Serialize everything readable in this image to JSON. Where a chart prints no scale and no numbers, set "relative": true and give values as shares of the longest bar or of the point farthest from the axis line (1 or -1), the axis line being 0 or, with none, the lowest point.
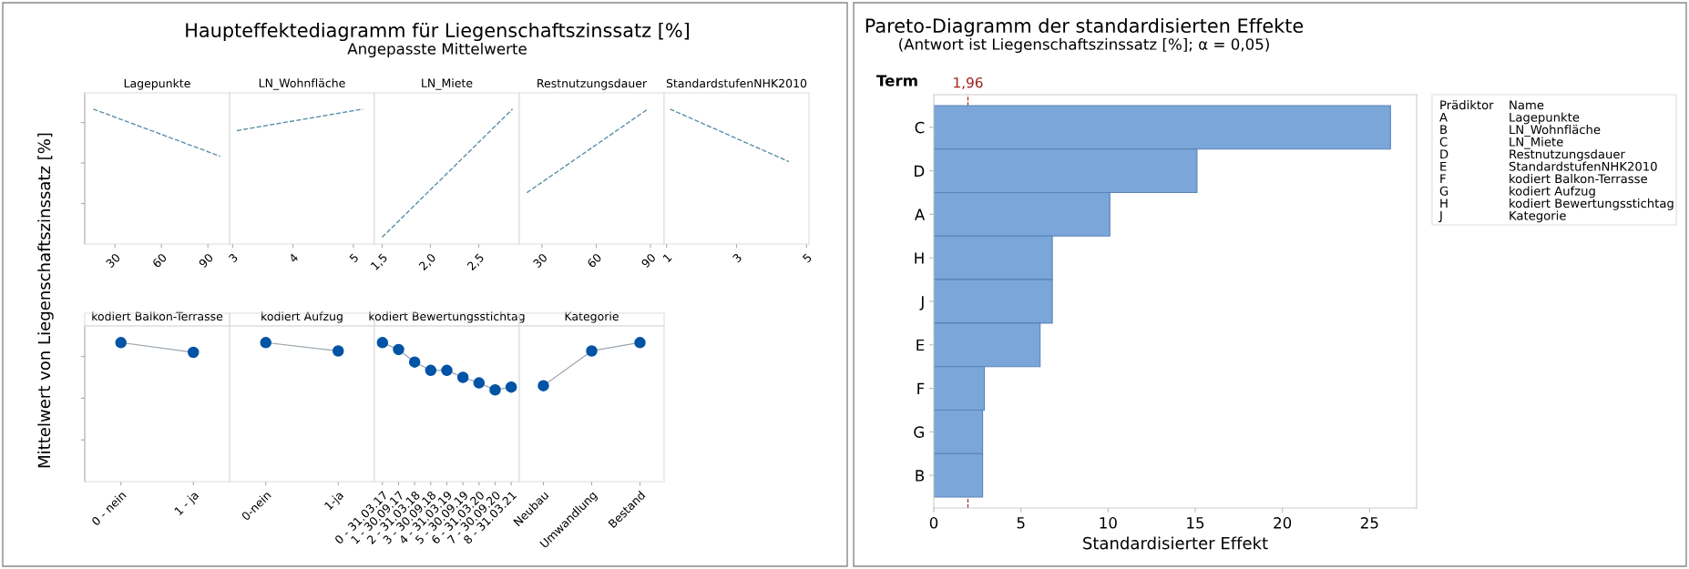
{
  "chart_data": [
    {
      "type": "line",
      "ylabel": "Mittelwert von Liegenschaftszinssatz [%]",
      "xlabel": "Lagepunkte",
      "relative": true,
      "x": [
        16,
        98
      ],
      "values": [
        1,
        0.65
      ],
      "color": "#5b8fa8",
      "line_style": "dashed",
      "marker": "none",
      "xlim": [
        10.5,
        104
      ],
      "xticks": [
        30,
        60,
        90
      ],
      "tick_labels": "x"
    },
    {
      "type": "line",
      "xlabel": "LN_Wohnfläche",
      "relative": true,
      "x": [
        3.07,
        5.16
      ],
      "values": [
        0.84,
        1
      ],
      "color": "#5b8fa8",
      "line_style": "dashed",
      "marker": "none",
      "xlim": [
        2.95,
        5.35
      ],
      "xticks": [
        3,
        4,
        5
      ],
      "tick_labels": "x"
    },
    {
      "type": "line",
      "title": "Haupteffektediagramm für Liegenschaftszinssatz [%]",
      "subtitle": "Angepasste Mittelwerte",
      "xlabel": "LN_Miete",
      "relative": true,
      "x": [
        1.5,
        2.85
      ],
      "values": [
        0.05,
        1
      ],
      "color": "#5b8fa8",
      "line_style": "dashed",
      "marker": "none",
      "xlim": [
        1.42,
        2.92
      ],
      "xticks": [
        {
          "value": 1.5,
          "label": "1,5"
        },
        {
          "value": 2.0,
          "label": "2,0"
        },
        {
          "value": 2.5,
          "label": "2,5"
        }
      ],
      "tick_labels": "x"
    },
    {
      "type": "line",
      "xlabel": "Restnutzungsdauer",
      "relative": true,
      "x": [
        21.6,
        88.6
      ],
      "values": [
        0.38,
        1
      ],
      "color": "#5b8fa8",
      "line_style": "dashed",
      "marker": "none",
      "xlim": [
        17.4,
        97.6
      ],
      "xticks": [
        30,
        60,
        90
      ],
      "tick_labels": "x"
    },
    {
      "type": "line",
      "xlabel": "StandardstufenNHK2010",
      "relative": true,
      "x": [
        1.1,
        4.5
      ],
      "values": [
        1,
        0.61
      ],
      "color": "#5b8fa8",
      "line_style": "dashed",
      "marker": "none",
      "xlim": [
        0.93,
        5.07
      ],
      "xticks": [
        1,
        3,
        5
      ],
      "tick_labels": "x"
    },
    {
      "type": "line",
      "xlabel": "kodiert Balkon-Terrasse",
      "relative": true,
      "categories": [
        "0 - nein",
        "1 - ja"
      ],
      "values": [
        1,
        0.93
      ],
      "color": "#0054a6",
      "marker": "circle",
      "tick_labels": "x"
    },
    {
      "type": "line",
      "xlabel": "kodiert Aufzug",
      "relative": true,
      "categories": [
        "0-nein",
        "1-ja"
      ],
      "values": [
        1,
        0.94
      ],
      "color": "#0054a6",
      "marker": "circle",
      "tick_labels": "x"
    },
    {
      "type": "line",
      "xlabel": "kodiert Bewertungsstichtag",
      "relative": true,
      "categories": [
        "0 - 31.03.17",
        "1 - 30.09.17",
        "2 - 31.03.18",
        "3 - 30.09.18",
        "4 - 31.03.19",
        "5 - 30.09.19",
        "6 - 31.03.20",
        "7 - 30.09.20",
        "8 - 31.03.21"
      ],
      "values": [
        1,
        0.95,
        0.86,
        0.8,
        0.8,
        0.75,
        0.71,
        0.66,
        0.68
      ],
      "color": "#0054a6",
      "marker": "circle",
      "tick_labels": "x"
    },
    {
      "type": "line",
      "xlabel": "Kategorie",
      "relative": true,
      "categories": [
        "Neubau",
        "Umwandlung",
        "Bestand"
      ],
      "values": [
        0.69,
        0.94,
        1
      ],
      "color": "#0054a6",
      "marker": "circle",
      "tick_labels": "x"
    },
    {
      "type": "bar",
      "orientation": "horizontal",
      "title": "Pareto-Diagramm der standardisierten Effekte",
      "subtitle": "(Antwort ist Liegenschaftszinssatz [%]; α = 0,05)",
      "ylabel": "Term",
      "xlabel": "Standardisierter Effekt",
      "categories": [
        "C",
        "D",
        "A",
        "H",
        "J",
        "E",
        "F",
        "G",
        "B"
      ],
      "values": [
        26.2,
        15.1,
        10.1,
        6.8,
        6.8,
        6.1,
        2.9,
        2.8,
        2.8
      ],
      "color": "#7ba6d9",
      "xlim": [
        0,
        27.7
      ],
      "xticks": [
        0,
        5,
        10,
        15,
        20,
        25
      ],
      "ref_lines": [
        {
          "axis": "x",
          "value": 1.96,
          "label": "1,96",
          "color": "#a01c1c",
          "line_style": "dashed"
        }
      ],
      "annotations": [
        "Prädiktor",
        "Name",
        "A",
        "Lagepunkte",
        "B",
        "LN_Wohnfläche",
        "C",
        "LN_Miete",
        "D",
        "Restnutzungsdauer",
        "E",
        "StandardstufenNHK2010",
        "F",
        "kodiert Balkon-Terrasse",
        "G",
        "kodiert Aufzug",
        "H",
        "kodiert Bewertungsstichtag",
        "J",
        "Kategorie"
      ]
    }
  ]
}
